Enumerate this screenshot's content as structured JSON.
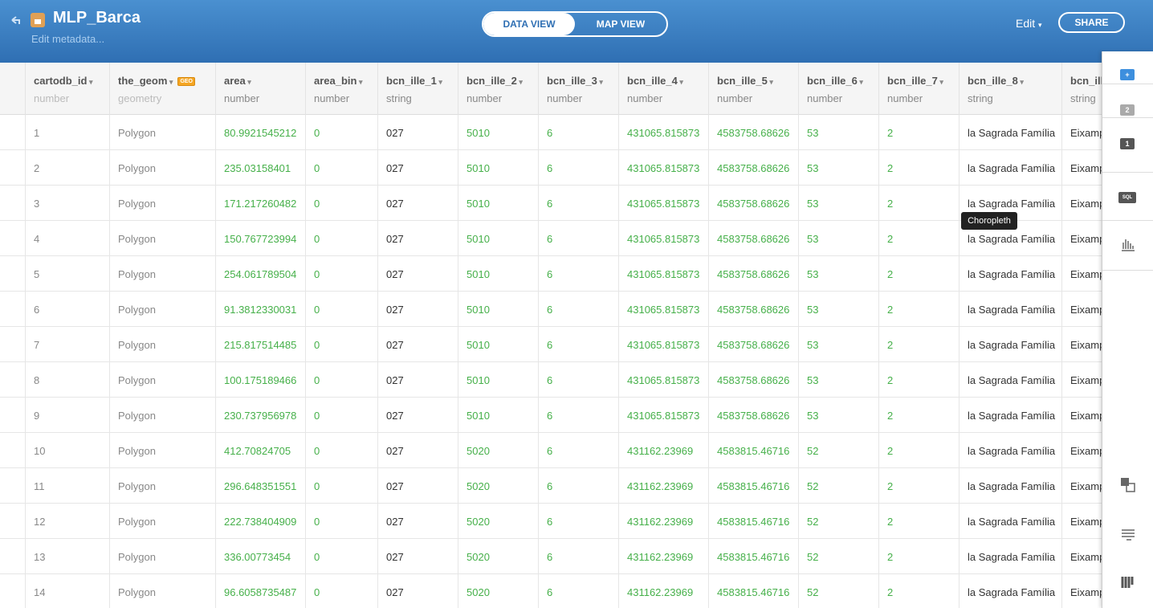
{
  "header": {
    "title": "MLP_Barca",
    "subtitle": "Edit metadata...",
    "tabs": [
      "DATA VIEW",
      "MAP VIEW"
    ],
    "edit": "Edit",
    "share": "SHARE"
  },
  "table": {
    "columns": [
      {
        "name": "cartodb_id",
        "type": "number"
      },
      {
        "name": "the_geom",
        "type": "geometry",
        "badge": "GEO"
      },
      {
        "name": "area",
        "type": "number"
      },
      {
        "name": "area_bin",
        "type": "number"
      },
      {
        "name": "bcn_ille_1",
        "type": "string"
      },
      {
        "name": "bcn_ille_2",
        "type": "number"
      },
      {
        "name": "bcn_ille_3",
        "type": "number"
      },
      {
        "name": "bcn_ille_4",
        "type": "number"
      },
      {
        "name": "bcn_ille_5",
        "type": "number"
      },
      {
        "name": "bcn_ille_6",
        "type": "number"
      },
      {
        "name": "bcn_ille_7",
        "type": "number"
      },
      {
        "name": "bcn_ille_8",
        "type": "string"
      },
      {
        "name": "bcn_ill",
        "type": "string"
      }
    ],
    "rows": [
      [
        "1",
        "Polygon",
        "80.9921545212",
        "0",
        "027",
        "5010",
        "6",
        "431065.815873",
        "4583758.68626",
        "53",
        "2",
        "la Sagrada Família",
        "Eixamp"
      ],
      [
        "2",
        "Polygon",
        "235.03158401",
        "0",
        "027",
        "5010",
        "6",
        "431065.815873",
        "4583758.68626",
        "53",
        "2",
        "la Sagrada Família",
        "Eixamp"
      ],
      [
        "3",
        "Polygon",
        "171.217260482",
        "0",
        "027",
        "5010",
        "6",
        "431065.815873",
        "4583758.68626",
        "53",
        "2",
        "la Sagrada Família",
        "Eixamp"
      ],
      [
        "4",
        "Polygon",
        "150.767723994",
        "0",
        "027",
        "5010",
        "6",
        "431065.815873",
        "4583758.68626",
        "53",
        "2",
        "la Sagrada Família",
        "Eixamp"
      ],
      [
        "5",
        "Polygon",
        "254.061789504",
        "0",
        "027",
        "5010",
        "6",
        "431065.815873",
        "4583758.68626",
        "53",
        "2",
        "la Sagrada Família",
        "Eixamp"
      ],
      [
        "6",
        "Polygon",
        "91.3812330031",
        "0",
        "027",
        "5010",
        "6",
        "431065.815873",
        "4583758.68626",
        "53",
        "2",
        "la Sagrada Família",
        "Eixamp"
      ],
      [
        "7",
        "Polygon",
        "215.817514485",
        "0",
        "027",
        "5010",
        "6",
        "431065.815873",
        "4583758.68626",
        "53",
        "2",
        "la Sagrada Família",
        "Eixamp"
      ],
      [
        "8",
        "Polygon",
        "100.175189466",
        "0",
        "027",
        "5010",
        "6",
        "431065.815873",
        "4583758.68626",
        "53",
        "2",
        "la Sagrada Família",
        "Eixamp"
      ],
      [
        "9",
        "Polygon",
        "230.737956978",
        "0",
        "027",
        "5010",
        "6",
        "431065.815873",
        "4583758.68626",
        "53",
        "2",
        "la Sagrada Família",
        "Eixamp"
      ],
      [
        "10",
        "Polygon",
        "412.70824705",
        "0",
        "027",
        "5020",
        "6",
        "431162.23969",
        "4583815.46716",
        "52",
        "2",
        "la Sagrada Família",
        "Eixamp"
      ],
      [
        "11",
        "Polygon",
        "296.648351551",
        "0",
        "027",
        "5020",
        "6",
        "431162.23969",
        "4583815.46716",
        "52",
        "2",
        "la Sagrada Família",
        "Eixamp"
      ],
      [
        "12",
        "Polygon",
        "222.738404909",
        "0",
        "027",
        "5020",
        "6",
        "431162.23969",
        "4583815.46716",
        "52",
        "2",
        "la Sagrada Família",
        "Eixamp"
      ],
      [
        "13",
        "Polygon",
        "336.00773454",
        "0",
        "027",
        "5020",
        "6",
        "431162.23969",
        "4583815.46716",
        "52",
        "2",
        "la Sagrada Família",
        "Eixamp"
      ],
      [
        "14",
        "Polygon",
        "96.6058735487",
        "0",
        "027",
        "5020",
        "6",
        "431162.23969",
        "4583815.46716",
        "52",
        "2",
        "la Sagrada Família",
        "Eixamp"
      ]
    ]
  },
  "sidebar": {
    "layer_two": "2",
    "layer_one": "1",
    "sql": "SQL",
    "tooltip": "Choropleth"
  }
}
